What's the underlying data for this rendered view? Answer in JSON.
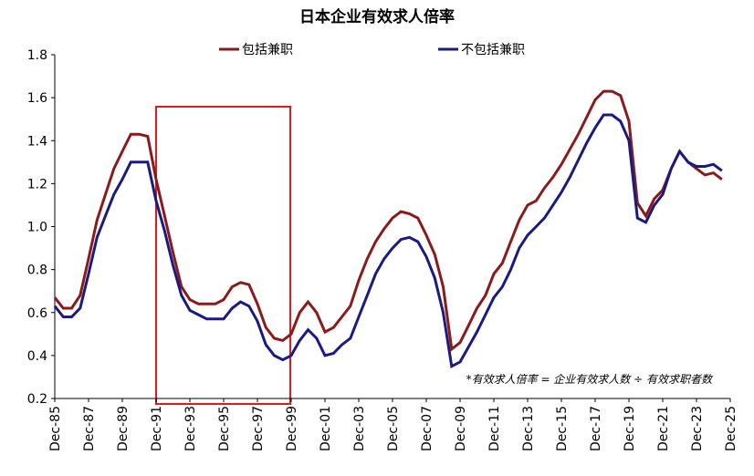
{
  "chart_data": {
    "type": "line",
    "title": "日本企业有效求人倍率",
    "note": "*有效求人倍率 = 企业有效求人数 ÷ 有效求职者数",
    "categories": [
      "Dec-85",
      null,
      null,
      null,
      "Dec-87",
      null,
      null,
      null,
      "Dec-89",
      null,
      null,
      null,
      "Dec-91",
      null,
      null,
      null,
      "Dec-93",
      null,
      null,
      null,
      "Dec-95",
      null,
      null,
      null,
      "Dec-97",
      null,
      null,
      null,
      "Dec-99",
      null,
      null,
      null,
      "Dec-01",
      null,
      null,
      null,
      "Dec-03",
      null,
      null,
      null,
      "Dec-05",
      null,
      null,
      null,
      "Dec-07",
      null,
      null,
      null,
      "Dec-09",
      null,
      null,
      null,
      "Dec-11",
      null,
      null,
      null,
      "Dec-13",
      null,
      null,
      null,
      "Dec-15",
      null,
      null,
      null,
      "Dec-17",
      null,
      null,
      null,
      "Dec-19",
      null,
      null,
      null,
      "Dec-21",
      null,
      null,
      null,
      "Dec-23",
      null,
      null,
      null,
      "Dec-25"
    ],
    "series": [
      {
        "name": "包括兼职",
        "color": "#8b1a1a",
        "values": [
          0.67,
          0.62,
          0.62,
          0.68,
          0.85,
          1.03,
          1.15,
          1.27,
          1.35,
          1.43,
          1.43,
          1.42,
          1.22,
          1.05,
          0.88,
          0.72,
          0.66,
          0.64,
          0.64,
          0.64,
          0.66,
          0.72,
          0.74,
          0.73,
          0.64,
          0.53,
          0.48,
          0.47,
          0.5,
          0.6,
          0.65,
          0.6,
          0.51,
          0.53,
          0.58,
          0.63,
          0.75,
          0.85,
          0.93,
          0.99,
          1.04,
          1.07,
          1.06,
          1.04,
          0.96,
          0.87,
          0.72,
          0.43,
          0.46,
          0.54,
          0.62,
          0.68,
          0.78,
          0.83,
          0.93,
          1.03,
          1.1,
          1.12,
          1.18,
          1.23,
          1.29,
          1.36,
          1.43,
          1.51,
          1.59,
          1.63,
          1.63,
          1.61,
          1.49,
          1.11,
          1.05,
          1.13,
          1.17,
          1.27,
          1.35,
          1.3,
          1.27,
          1.24,
          1.25,
          1.22,
          null
        ]
      },
      {
        "name": "不包括兼职",
        "color": "#1a1a80",
        "values": [
          0.63,
          0.58,
          0.58,
          0.62,
          0.78,
          0.95,
          1.05,
          1.15,
          1.22,
          1.3,
          1.3,
          1.3,
          1.12,
          0.98,
          0.82,
          0.68,
          0.61,
          0.59,
          0.57,
          0.57,
          0.57,
          0.62,
          0.65,
          0.63,
          0.56,
          0.45,
          0.4,
          0.38,
          0.4,
          0.47,
          0.52,
          0.48,
          0.4,
          0.41,
          0.45,
          0.48,
          0.58,
          0.68,
          0.78,
          0.85,
          0.9,
          0.94,
          0.95,
          0.93,
          0.86,
          0.76,
          0.6,
          0.35,
          0.37,
          0.44,
          0.51,
          0.59,
          0.67,
          0.72,
          0.8,
          0.9,
          0.96,
          1.0,
          1.04,
          1.1,
          1.16,
          1.23,
          1.31,
          1.39,
          1.46,
          1.52,
          1.52,
          1.49,
          1.4,
          1.04,
          1.02,
          1.1,
          1.15,
          1.27,
          1.35,
          1.3,
          1.28,
          1.28,
          1.29,
          1.26,
          null
        ]
      }
    ],
    "ylim": [
      0.2,
      1.8
    ],
    "yticks": [
      0.2,
      0.4,
      0.6,
      0.8,
      {
        "value": 1,
        "label": "1.0"
      },
      1.2,
      1.4,
      1.6,
      1.8
    ],
    "legend": "top"
  }
}
